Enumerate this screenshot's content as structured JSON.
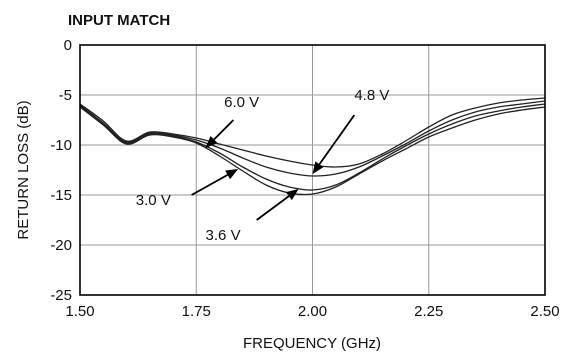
{
  "chart_data": {
    "type": "line",
    "title": "INPUT MATCH",
    "xlabel": "FREQUENCY (GHz)",
    "ylabel": "RETURN LOSS (dB)",
    "xlim": [
      1.5,
      2.5
    ],
    "ylim": [
      -25,
      0
    ],
    "xticks": [
      "1.50",
      "1.75",
      "2.00",
      "2.25",
      "2.50"
    ],
    "yticks": [
      "0",
      "-5",
      "-10",
      "-15",
      "-20",
      "-25"
    ],
    "grid": true,
    "x": [
      1.5,
      1.55,
      1.6,
      1.65,
      1.7,
      1.75,
      1.8,
      1.85,
      1.9,
      1.95,
      2.0,
      2.05,
      2.1,
      2.15,
      2.2,
      2.25,
      2.3,
      2.35,
      2.4,
      2.45,
      2.5
    ],
    "series": [
      {
        "name": "6.0 V",
        "values": [
          -5.9,
          -7.6,
          -9.6,
          -8.7,
          -8.9,
          -9.3,
          -9.9,
          -10.5,
          -11.1,
          -11.6,
          -12.0,
          -12.2,
          -11.9,
          -10.9,
          -9.6,
          -8.2,
          -7.0,
          -6.3,
          -5.8,
          -5.5,
          -5.3
        ]
      },
      {
        "name": "4.8 V",
        "values": [
          -6.0,
          -7.8,
          -9.7,
          -8.8,
          -9.0,
          -9.5,
          -10.3,
          -11.3,
          -12.2,
          -12.8,
          -13.1,
          -12.9,
          -12.2,
          -11.1,
          -9.9,
          -8.6,
          -7.5,
          -6.7,
          -6.2,
          -5.9,
          -5.6
        ]
      },
      {
        "name": "3.6 V",
        "values": [
          -6.1,
          -7.9,
          -9.8,
          -8.9,
          -9.1,
          -9.7,
          -10.8,
          -12.2,
          -13.4,
          -14.2,
          -14.5,
          -14.0,
          -12.8,
          -11.4,
          -10.1,
          -8.9,
          -7.9,
          -7.1,
          -6.6,
          -6.2,
          -5.9
        ]
      },
      {
        "name": "3.0 V",
        "values": [
          -6.2,
          -8.0,
          -9.9,
          -9.0,
          -9.2,
          -9.8,
          -11.1,
          -12.6,
          -14.0,
          -14.8,
          -14.9,
          -14.2,
          -12.9,
          -11.6,
          -10.4,
          -9.2,
          -8.3,
          -7.5,
          -6.9,
          -6.5,
          -6.2
        ]
      }
    ],
    "annotations": [
      {
        "text": "6.0 V",
        "label_at": [
          1.81,
          -5.7
        ],
        "arrow_from": [
          1.83,
          -7.5
        ],
        "arrow_to": [
          1.77,
          -10.3
        ]
      },
      {
        "text": "4.8 V",
        "label_at": [
          2.09,
          -5.0
        ],
        "arrow_from": [
          2.09,
          -7.0
        ],
        "arrow_to": [
          2.0,
          -12.9
        ]
      },
      {
        "text": "3.0 V",
        "label_at": [
          1.62,
          -15.5
        ],
        "arrow_from": [
          1.74,
          -15.0
        ],
        "arrow_to": [
          1.84,
          -12.4
        ]
      },
      {
        "text": "3.6 V",
        "label_at": [
          1.77,
          -19.0
        ],
        "arrow_from": [
          1.88,
          -17.5
        ],
        "arrow_to": [
          1.97,
          -14.4
        ]
      }
    ]
  }
}
